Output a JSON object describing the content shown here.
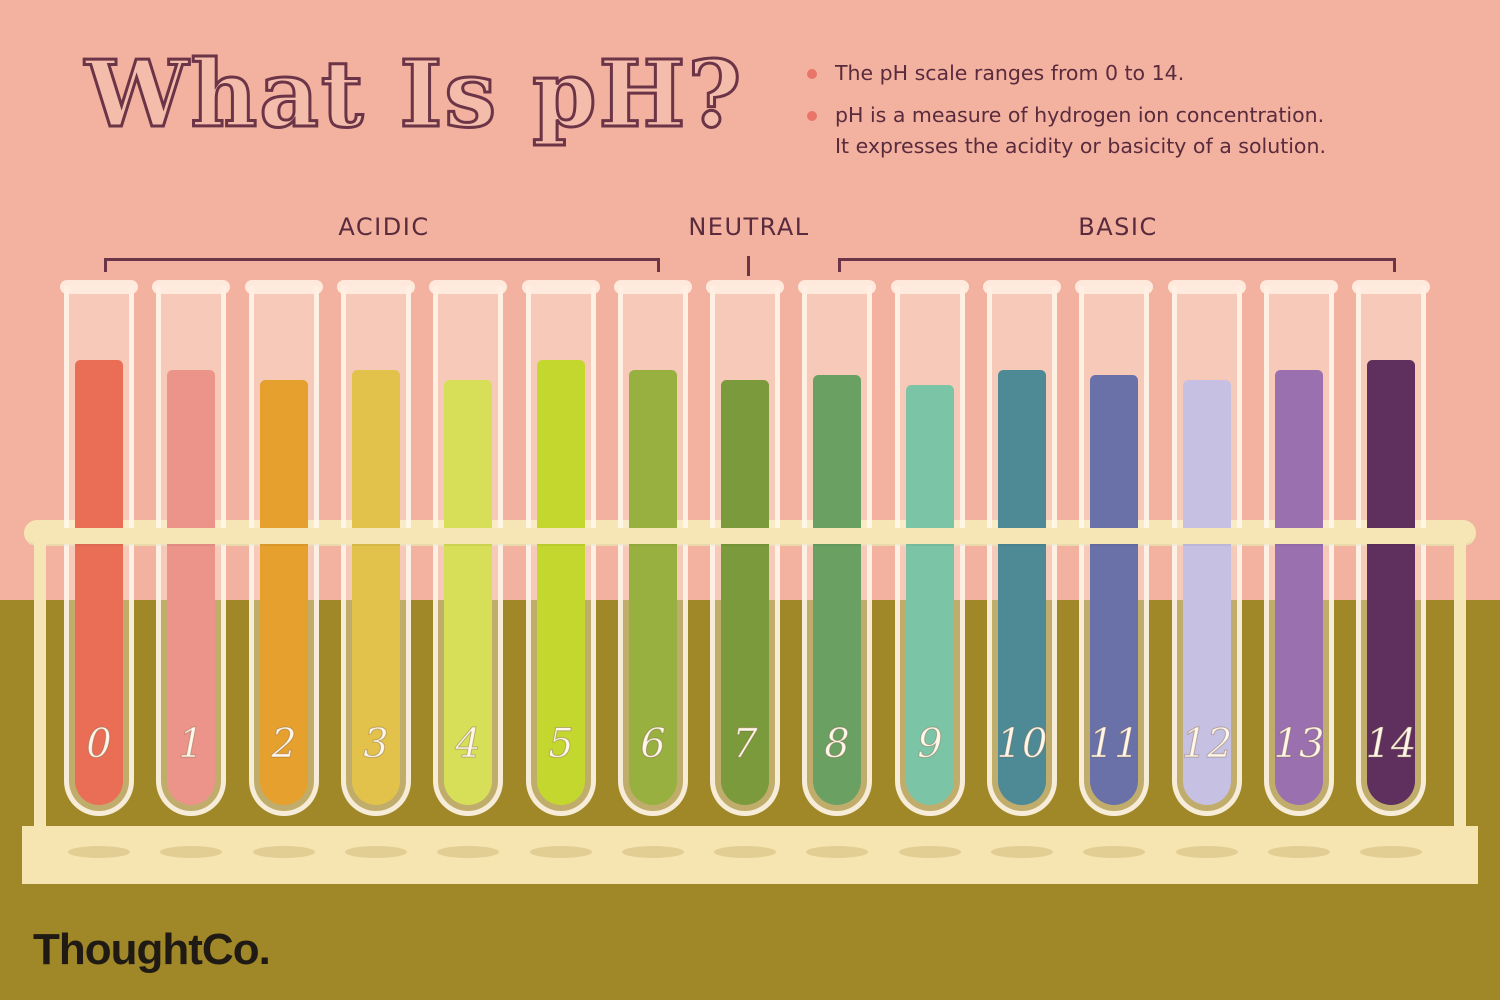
{
  "title": "What Is pH?",
  "bullets": [
    {
      "lines": [
        "The pH scale ranges from 0 to 14."
      ]
    },
    {
      "lines": [
        "pH is a measure of hydrogen ion concentration.",
        "It expresses the acidity or basicity of a solution."
      ]
    }
  ],
  "groups": {
    "acidic": "ACIDIC",
    "neutral": "NEUTRAL",
    "basic": "BASIC"
  },
  "tubes": [
    {
      "label": "0",
      "color": "#ea6d56",
      "fill": 0.86
    },
    {
      "label": "1",
      "color": "#ec948a",
      "fill": 0.84
    },
    {
      "label": "2",
      "color": "#e6a02e",
      "fill": 0.82
    },
    {
      "label": "3",
      "color": "#e2c24a",
      "fill": 0.84
    },
    {
      "label": "4",
      "color": "#d7df58",
      "fill": 0.82
    },
    {
      "label": "5",
      "color": "#c3d72e",
      "fill": 0.86
    },
    {
      "label": "6",
      "color": "#98b03f",
      "fill": 0.84
    },
    {
      "label": "7",
      "color": "#7b9a3b",
      "fill": 0.82
    },
    {
      "label": "8",
      "color": "#6aa062",
      "fill": 0.83
    },
    {
      "label": "9",
      "color": "#7cc4a6",
      "fill": 0.81
    },
    {
      "label": "10",
      "color": "#4d8a96",
      "fill": 0.84
    },
    {
      "label": "11",
      "color": "#6a70a8",
      "fill": 0.83
    },
    {
      "label": "12",
      "color": "#c6c1e3",
      "fill": 0.82
    },
    {
      "label": "13",
      "color": "#9a70ae",
      "fill": 0.84
    },
    {
      "label": "14",
      "color": "#5f2f5e",
      "fill": 0.86
    }
  ],
  "logo": "ThoughtCo."
}
